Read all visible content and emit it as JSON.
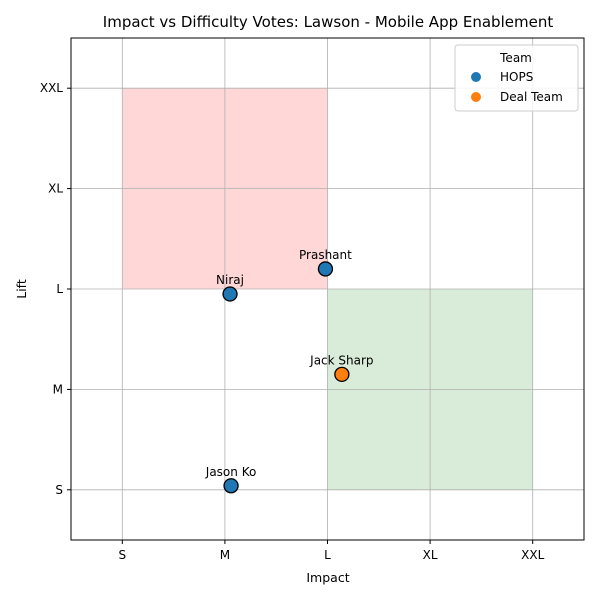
{
  "chart_data": {
    "type": "scatter",
    "title": "Impact vs Difficulty Votes: Lawson - Mobile App Enablement",
    "xlabel": "Impact",
    "ylabel": "Lift",
    "x_categories": [
      "S",
      "M",
      "L",
      "XL",
      "XXL"
    ],
    "y_categories": [
      "S",
      "M",
      "L",
      "XL",
      "XXL"
    ],
    "xlim": [
      0.5,
      5.5
    ],
    "ylim": [
      0.5,
      5.5
    ],
    "grid": true,
    "regions": [
      {
        "name": "high-lift-low-impact",
        "x": [
          1,
          3
        ],
        "y": [
          3,
          5
        ],
        "color": "#ffd7d7"
      },
      {
        "name": "low-lift-high-impact",
        "x": [
          3,
          5
        ],
        "y": [
          1,
          3
        ],
        "color": "#d9ecd9"
      }
    ],
    "legend": {
      "title": "Team",
      "placement": "top-right",
      "entries": [
        {
          "name": "HOPS",
          "color": "#1f77b4"
        },
        {
          "name": "Deal Team",
          "color": "#ff7f0e"
        }
      ]
    },
    "series": [
      {
        "name": "HOPS",
        "color": "#1f77b4",
        "points": [
          {
            "label": "Prashant",
            "x": 2.98,
            "y": 3.2
          },
          {
            "label": "Niraj",
            "x": 2.05,
            "y": 2.95
          },
          {
            "label": "Jason Ko",
            "x": 2.06,
            "y": 1.04
          }
        ]
      },
      {
        "name": "Deal Team",
        "color": "#ff7f0e",
        "points": [
          {
            "label": "Jack Sharp",
            "x": 3.14,
            "y": 2.15
          }
        ]
      }
    ]
  }
}
